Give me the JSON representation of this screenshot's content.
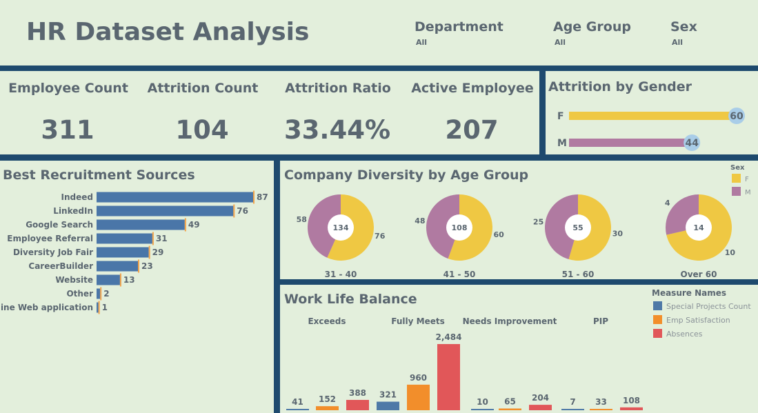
{
  "header": {
    "title": "HR Dataset  Analysis",
    "filters": [
      {
        "label": "Department",
        "value": "All"
      },
      {
        "label": "Age Group",
        "value": "All"
      },
      {
        "label": "Sex",
        "value": "All"
      }
    ]
  },
  "kpis": [
    {
      "label": "Employee Count",
      "value": "311"
    },
    {
      "label": "Attrition Count",
      "value": "104"
    },
    {
      "label": "Attrition Ratio",
      "value": "33.44%"
    },
    {
      "label": "Active Employee",
      "value": "207"
    }
  ],
  "colors": {
    "female": "#efc843",
    "male": "#b07aa1",
    "special_projects": "#4e79a7",
    "emp_satisfaction": "#f28e2b",
    "absences": "#e15759",
    "bar_blue": "#4a76a8",
    "marker": "#f3a44a"
  },
  "chart_data": [
    {
      "type": "bar",
      "orientation": "horizontal",
      "title": "Attrition by Gender",
      "categories": [
        "F",
        "M"
      ],
      "values": [
        60,
        44
      ],
      "xlim": [
        0,
        60
      ]
    },
    {
      "type": "bar",
      "orientation": "horizontal",
      "title": "Best Recruitment Sources",
      "categories": [
        "Indeed",
        "LinkedIn",
        "Google Search",
        "Employee Referral",
        "Diversity Job Fair",
        "CareerBuilder",
        "Website",
        "Other",
        "On-line Web application"
      ],
      "values": [
        87,
        76,
        49,
        31,
        29,
        23,
        13,
        2,
        1
      ],
      "xlim": [
        0,
        87
      ]
    },
    {
      "type": "pie",
      "title": "Company Diversity by Age Group",
      "legend_title": "Sex",
      "legend": [
        "F",
        "M"
      ],
      "legend_position": "top-right",
      "groups": [
        {
          "label": "31 - 40",
          "total": 134,
          "F": 76,
          "M": 58
        },
        {
          "label": "41 - 50",
          "total": 108,
          "F": 60,
          "M": 48
        },
        {
          "label": "51 - 60",
          "total": 55,
          "F": 30,
          "M": 25
        },
        {
          "label": "Over 60",
          "total": 14,
          "F": 10,
          "M": 4
        }
      ]
    },
    {
      "type": "bar",
      "title": "Work Life Balance",
      "legend_title": "Measure Names",
      "legend_position": "top-right",
      "categories": [
        "Exceeds",
        "Fully Meets",
        "Needs Improvement",
        "PIP"
      ],
      "series": [
        {
          "name": "Special Projects Count",
          "values": [
            41,
            321,
            10,
            7
          ]
        },
        {
          "name": "Emp Satisfaction",
          "values": [
            152,
            960,
            65,
            33
          ]
        },
        {
          "name": "Absences",
          "values": [
            388,
            2484,
            204,
            108
          ]
        }
      ],
      "value_labels": [
        [
          "41",
          "152",
          "388"
        ],
        [
          "321",
          "960",
          "2,484"
        ],
        [
          "10",
          "65",
          "204"
        ],
        [
          "7",
          "33",
          "108"
        ]
      ],
      "ylim": [
        0,
        2484
      ]
    }
  ]
}
